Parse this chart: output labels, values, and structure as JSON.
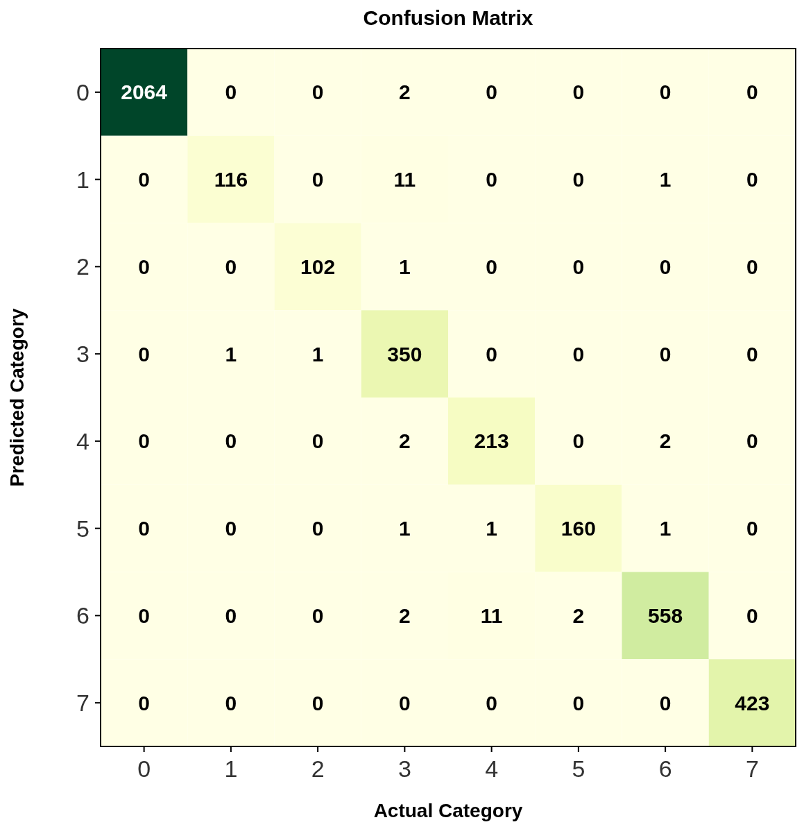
{
  "chart_data": {
    "type": "heatmap",
    "title": "Confusion Matrix",
    "xlabel": "Actual Category",
    "ylabel": "Predicted Category",
    "categories": [
      "0",
      "1",
      "2",
      "3",
      "4",
      "5",
      "6",
      "7"
    ],
    "y_categories": [
      "0",
      "1",
      "2",
      "3",
      "4",
      "5",
      "6",
      "7"
    ],
    "cells": [
      [
        2064,
        0,
        0,
        2,
        0,
        0,
        0,
        0
      ],
      [
        0,
        116,
        0,
        11,
        0,
        0,
        1,
        0
      ],
      [
        0,
        0,
        102,
        1,
        0,
        0,
        0,
        0
      ],
      [
        0,
        1,
        1,
        350,
        0,
        0,
        0,
        0
      ],
      [
        0,
        0,
        0,
        2,
        213,
        0,
        2,
        0
      ],
      [
        0,
        0,
        0,
        1,
        1,
        160,
        1,
        0
      ],
      [
        0,
        0,
        0,
        2,
        11,
        2,
        558,
        0
      ],
      [
        0,
        0,
        0,
        0,
        0,
        0,
        0,
        423
      ]
    ],
    "data_labels": true,
    "grid": false
  }
}
